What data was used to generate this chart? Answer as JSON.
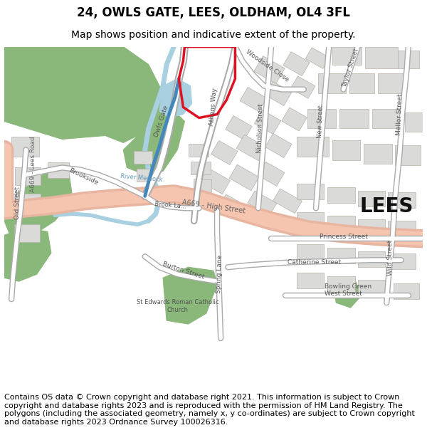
{
  "title_line1": "24, OWLS GATE, LEES, OLDHAM, OL4 3FL",
  "title_line2": "Map shows position and indicative extent of the property.",
  "title_fontsize": 12,
  "subtitle_fontsize": 10,
  "footer_text": "Contains OS data © Crown copyright and database right 2021. This information is subject to Crown copyright and database rights 2023 and is reproduced with the permission of HM Land Registry. The polygons (including the associated geometry, namely x, y co-ordinates) are subject to Crown copyright and database rights 2023 Ordnance Survey 100026316.",
  "footer_fontsize": 8.0,
  "background_color": "#ffffff",
  "map_bg": "#f7f5f2",
  "road_color_major": "#f5c5b0",
  "road_color_minor": "#ffffff",
  "green_area_color": "#8ab87a",
  "water_color": "#a8d0e0",
  "building_color": "#dadad8",
  "plot_outline_color": "#dd1122",
  "road_label_color": "#555555",
  "lees_label_color": "#111111",
  "title_color": "#000000",
  "footer_color": "#000000",
  "border_color": "#bbbbbb",
  "fig_width": 6.0,
  "fig_height": 6.25
}
